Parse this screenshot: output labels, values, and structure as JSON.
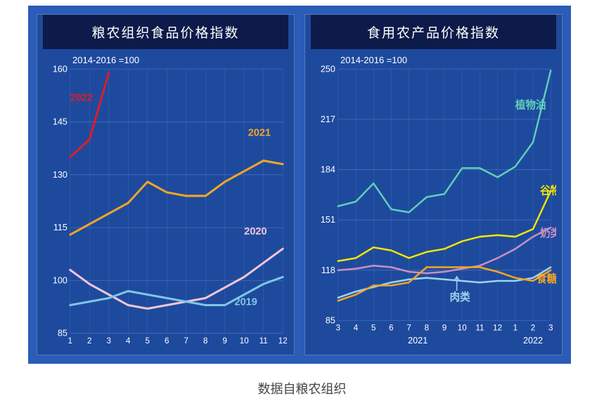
{
  "caption": "数据自粮农组织",
  "panels": {
    "left": {
      "title": "粮农组织食品价格指数",
      "baseline": "2014-2016 =100",
      "ylim": [
        85,
        160
      ],
      "ytick_step": 15,
      "xlabels": [
        "1",
        "2",
        "3",
        "4",
        "5",
        "6",
        "7",
        "8",
        "9",
        "10",
        "11",
        "12"
      ],
      "grid_color": "#6a8fd0",
      "background_color": "#1e4a9e",
      "series": [
        {
          "name": "2022",
          "color": "#e31b23",
          "label_xy": [
            1.0,
            151
          ],
          "x": [
            1,
            2,
            3
          ],
          "y": [
            135,
            140,
            159
          ],
          "width": 3
        },
        {
          "name": "2021",
          "color": "#f5a623",
          "label_xy": [
            10.2,
            141
          ],
          "x": [
            1,
            2,
            3,
            4,
            5,
            6,
            7,
            8,
            9,
            10,
            11,
            12
          ],
          "y": [
            113,
            116,
            119,
            122,
            128,
            125,
            124,
            124,
            128,
            131,
            134,
            133
          ],
          "width": 3
        },
        {
          "name": "2020",
          "color": "#f5c6d8",
          "label_xy": [
            10.0,
            113
          ],
          "x": [
            1,
            2,
            3,
            4,
            5,
            6,
            7,
            8,
            9,
            10,
            11,
            12
          ],
          "y": [
            103,
            99,
            96,
            93,
            92,
            93,
            94,
            95,
            98,
            101,
            105,
            109
          ],
          "width": 3
        },
        {
          "name": "2019",
          "color": "#7ec8e3",
          "label_xy": [
            9.5,
            93
          ],
          "x": [
            1,
            2,
            3,
            4,
            5,
            6,
            7,
            8,
            9,
            10,
            11,
            12
          ],
          "y": [
            93,
            94,
            95,
            97,
            96,
            95,
            94,
            93,
            93,
            96,
            99,
            101
          ],
          "width": 3
        }
      ]
    },
    "right": {
      "title": "食用农产品价格指数",
      "baseline": "2014-2016 =100",
      "ylim": [
        85,
        250
      ],
      "ytick_step": 33,
      "xgroups": [
        {
          "year": "2021",
          "months": [
            "3",
            "4",
            "5",
            "6",
            "7",
            "8",
            "9",
            "10",
            "11",
            "12"
          ]
        },
        {
          "year": "2022",
          "months": [
            "1",
            "2",
            "3"
          ]
        }
      ],
      "grid_color": "#6a8fd0",
      "background_color": "#1e4a9e",
      "series": [
        {
          "name": "植物油",
          "color": "#5fd0b8",
          "label_xy": [
            11.0,
            224
          ],
          "x": [
            1,
            2,
            3,
            4,
            5,
            6,
            7,
            8,
            9,
            10,
            11,
            12,
            13
          ],
          "y": [
            160,
            163,
            175,
            158,
            156,
            166,
            168,
            185,
            185,
            179,
            186,
            202,
            249
          ],
          "width": 2.5
        },
        {
          "name": "谷物",
          "color": "#f2e600",
          "label_xy": [
            12.4,
            168
          ],
          "x": [
            1,
            2,
            3,
            4,
            5,
            6,
            7,
            8,
            9,
            10,
            11,
            12,
            13
          ],
          "y": [
            124,
            126,
            133,
            131,
            126,
            130,
            132,
            137,
            140,
            141,
            140,
            145,
            170
          ],
          "width": 2.5
        },
        {
          "name": "奶类",
          "color": "#c98fc3",
          "label_xy": [
            12.4,
            140
          ],
          "x": [
            1,
            2,
            3,
            4,
            5,
            6,
            7,
            8,
            9,
            10,
            11,
            12,
            13
          ],
          "y": [
            118,
            119,
            121,
            120,
            117,
            116,
            117,
            119,
            121,
            126,
            132,
            140,
            146
          ],
          "width": 2.5
        },
        {
          "name": "肉类",
          "color": "#9fd3ec",
          "label_xy": [
            7.3,
            98
          ],
          "pointer": true,
          "x": [
            1,
            2,
            3,
            4,
            5,
            6,
            7,
            8,
            9,
            10,
            11,
            12,
            13
          ],
          "y": [
            100,
            104,
            107,
            110,
            112,
            113,
            112,
            111,
            110,
            111,
            111,
            113,
            120
          ],
          "width": 2.5
        },
        {
          "name": "食糖",
          "color": "#f5a623",
          "label_xy": [
            12.2,
            110
          ],
          "x": [
            1,
            2,
            3,
            4,
            5,
            6,
            7,
            8,
            9,
            10,
            11,
            12,
            13
          ],
          "y": [
            98,
            102,
            108,
            108,
            110,
            120,
            120,
            120,
            120,
            117,
            113,
            111,
            118
          ],
          "width": 2.5
        }
      ]
    }
  }
}
